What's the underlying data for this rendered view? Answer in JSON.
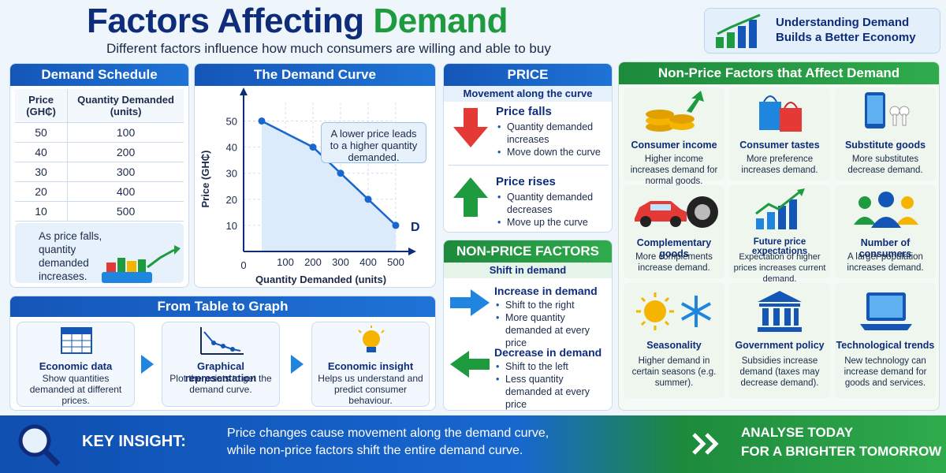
{
  "header": {
    "title_part1": "Factors Affecting ",
    "title_part2": "Demand",
    "subtitle": "Different factors influence how much consumers are willing and able to buy"
  },
  "banner": {
    "line1": "Understanding Demand",
    "line2": "Builds a Better Economy"
  },
  "schedule": {
    "title": "Demand Schedule",
    "col1": "Price (GH₵)",
    "col2": "Quantity Demanded (units)",
    "rows": [
      [
        "50",
        "100"
      ],
      [
        "40",
        "200"
      ],
      [
        "30",
        "300"
      ],
      [
        "20",
        "400"
      ],
      [
        "10",
        "500"
      ]
    ],
    "note": "As price falls, quantity demanded increases."
  },
  "curve": {
    "title": "The Demand Curve",
    "ylabel": "Price (GH₵)",
    "xlabel": "Quantity Demanded (units)",
    "callout": "A lower price leads to a higher quantity demanded.",
    "curve_label": "D",
    "origin": "0"
  },
  "chart_data": {
    "type": "line",
    "x": [
      100,
      200,
      300,
      400,
      500
    ],
    "series": [
      {
        "name": "D",
        "values": [
          50,
          40,
          30,
          20,
          10
        ]
      }
    ],
    "xticks": [
      100,
      200,
      300,
      400,
      500
    ],
    "yticks": [
      10,
      20,
      30,
      40,
      50
    ],
    "xlabel": "Quantity Demanded (units)",
    "ylabel": "Price (GH₵)",
    "xlim": [
      0,
      500
    ],
    "ylim": [
      0,
      58
    ]
  },
  "flow": {
    "title": "From Table to Graph",
    "steps": [
      {
        "title": "Economic data",
        "desc": "Show quantities demanded at different prices."
      },
      {
        "title": "Graphical representation",
        "desc": "Plot the points to get the demand curve."
      },
      {
        "title": "Economic insight",
        "desc": "Helps us understand and predict consumer behaviour."
      }
    ]
  },
  "price": {
    "title": "PRICE",
    "sub": "Movement along the curve",
    "falls": {
      "title": "Price falls",
      "b1": "Quantity demanded increases",
      "b2": "Move down the curve"
    },
    "rises": {
      "title": "Price rises",
      "b1": "Quantity demanded decreases",
      "b2": "Move up the curve"
    }
  },
  "nonprice": {
    "title": "NON-PRICE FACTORS",
    "sub": "Shift in demand",
    "inc": {
      "title": "Increase in demand",
      "b1": "Shift to the right",
      "b2": "More quantity demanded at every price"
    },
    "dec": {
      "title": "Decrease in demand",
      "b1": "Shift to the left",
      "b2": "Less quantity demanded at every price"
    }
  },
  "factors": {
    "title": "Non-Price Factors that Affect Demand",
    "items": [
      {
        "title": "Consumer income",
        "desc": "Higher income increases demand for normal goods."
      },
      {
        "title": "Consumer tastes",
        "desc": "More preference increases demand."
      },
      {
        "title": "Substitute goods",
        "desc": "More substitutes decrease demand."
      },
      {
        "title": "Complementary goods",
        "desc": "More complements increase demand."
      },
      {
        "title": "Future price expectations",
        "desc": "Expectation of higher prices increases current demand."
      },
      {
        "title": "Number of consumers",
        "desc": "A larger population increases demand."
      },
      {
        "title": "Seasonality",
        "desc": "Higher demand in certain seasons (e.g. summer)."
      },
      {
        "title": "Government policy",
        "desc": "Subsidies increase demand (taxes may decrease demand)."
      },
      {
        "title": "Technological trends",
        "desc": "New technology can increase demand for goods and services."
      }
    ]
  },
  "footer": {
    "key_label": "KEY INSIGHT:",
    "line1": "Price changes cause movement along the demand curve,",
    "line2": "while non-price factors shift the entire demand curve.",
    "cta1": "ANALYSE TODAY",
    "cta2": "FOR A BRIGHTER TOMORROW"
  },
  "colors": {
    "blue": "#1456b8",
    "green": "#1e9a3f",
    "navy": "#0e2c7a",
    "red": "#e53935"
  }
}
